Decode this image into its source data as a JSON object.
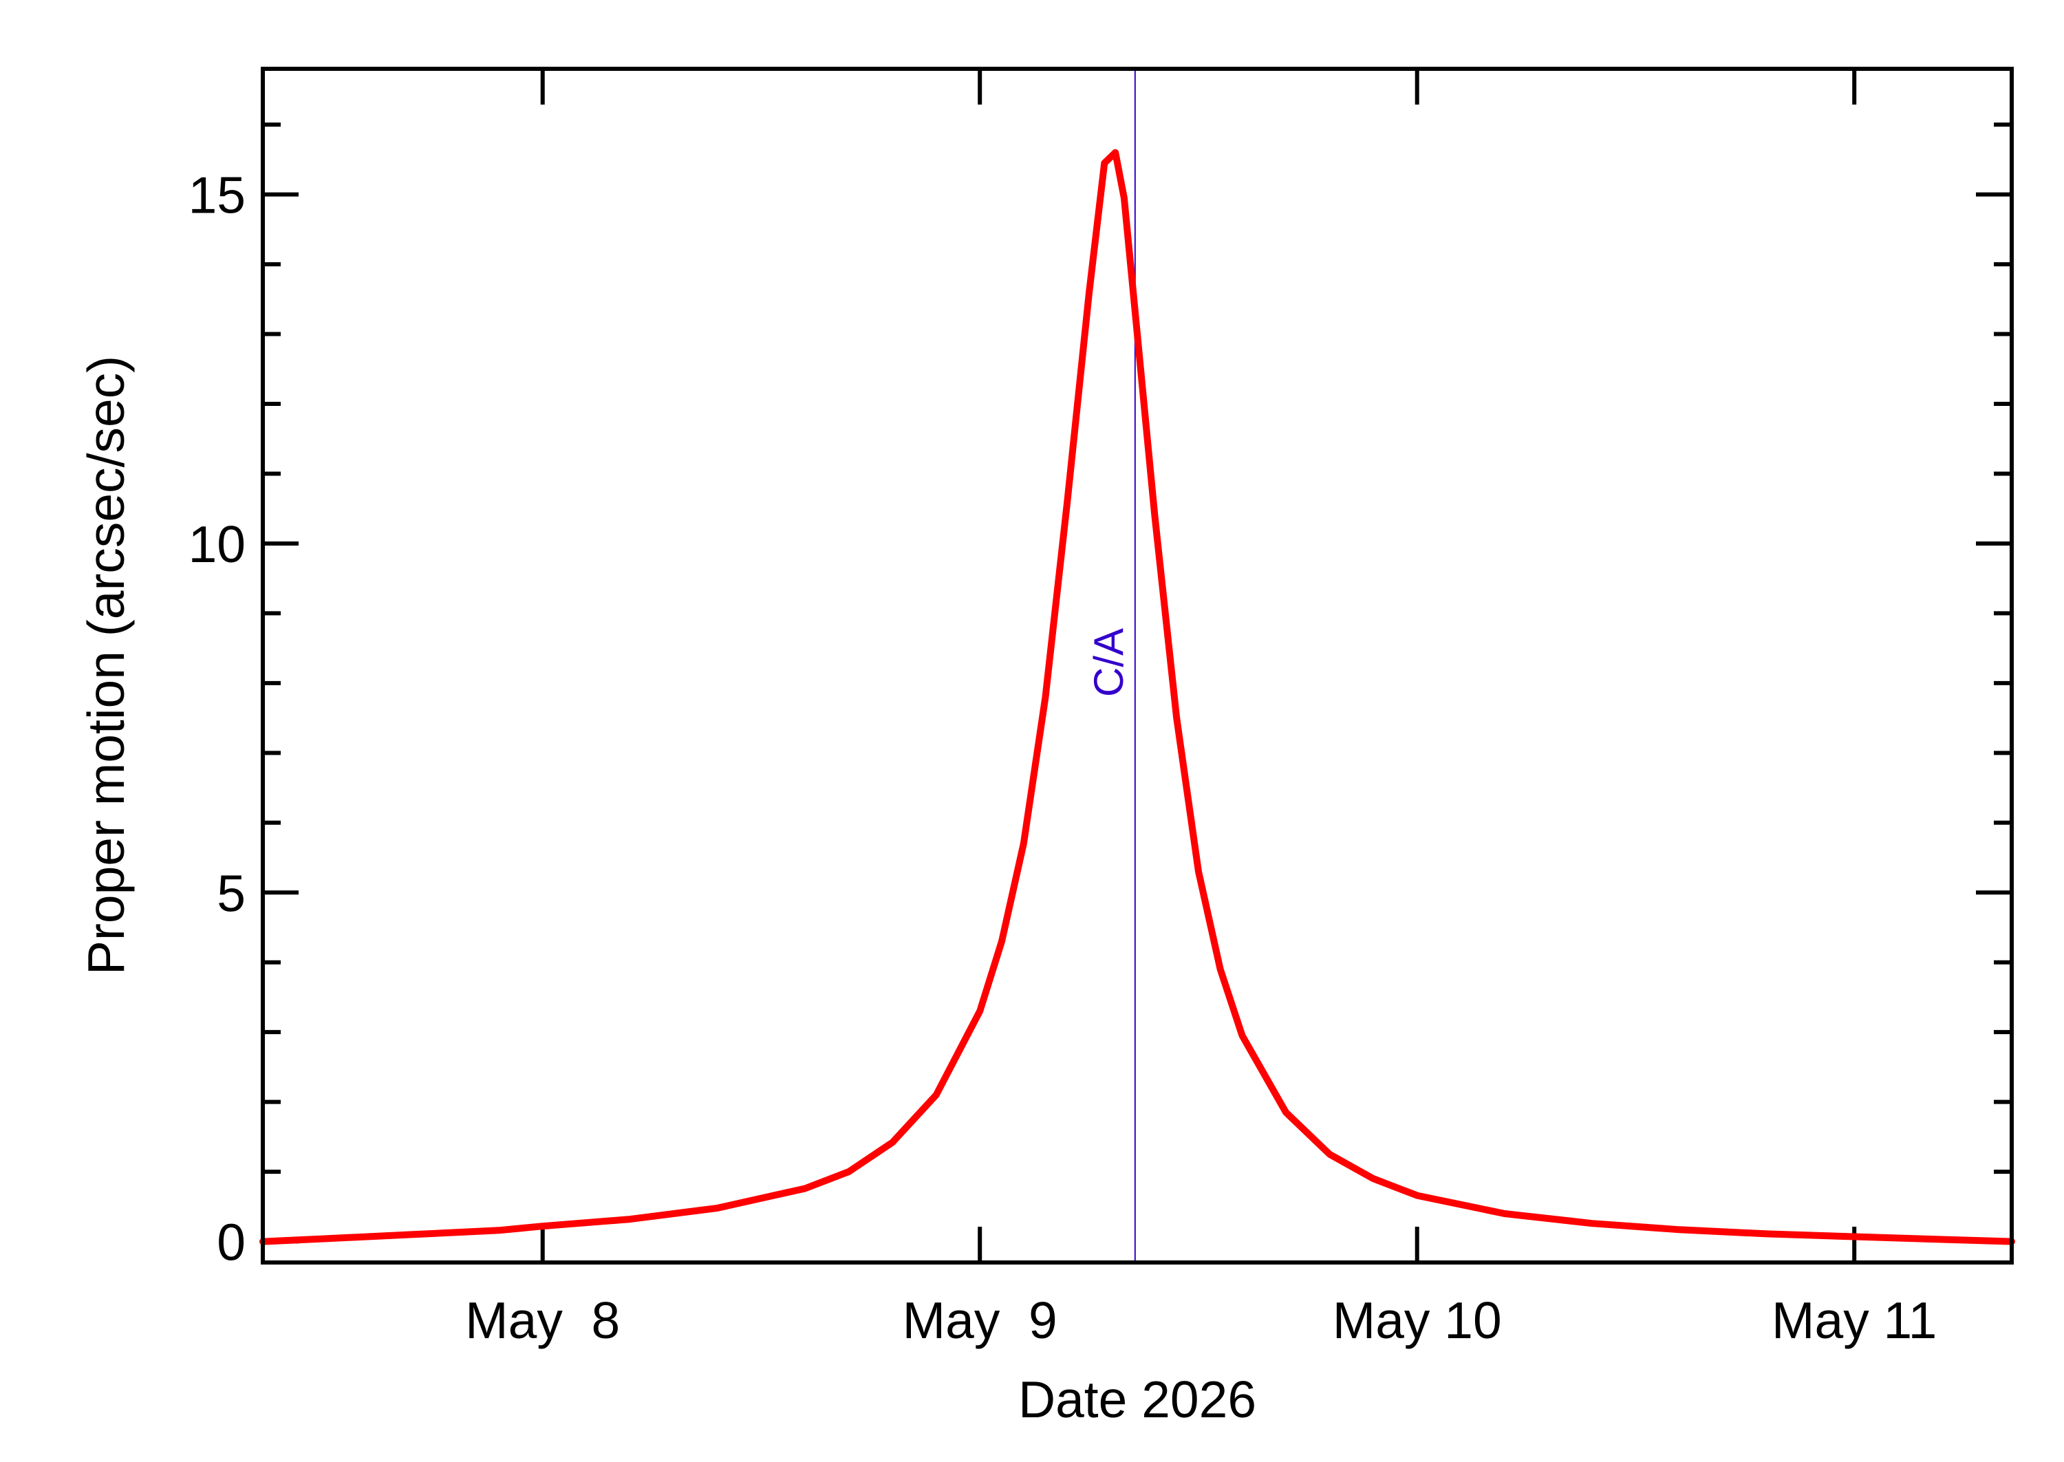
{
  "chart_data": {
    "type": "line",
    "title": "",
    "xlabel": "Date 2026",
    "ylabel": "Proper motion (arcsec/sec)",
    "x_ticks": [
      {
        "label": "May  8",
        "day": 8.0
      },
      {
        "label": "May  9",
        "day": 9.0
      },
      {
        "label": "May 10",
        "day": 10.0
      },
      {
        "label": "May 11",
        "day": 11.0
      }
    ],
    "y_ticks": [
      {
        "label": "0",
        "value": 0
      },
      {
        "label": "5",
        "value": 5
      },
      {
        "label": "10",
        "value": 10
      },
      {
        "label": "15",
        "value": 15
      }
    ],
    "xlim": [
      "May 7.36",
      "May 11.36"
    ],
    "ylim": [
      -0.3,
      16.8
    ],
    "grid": false,
    "series": [
      {
        "color": "#ff0000",
        "points": [
          [
            "May 7.36",
            0.0
          ],
          [
            "May 7.50",
            0.04
          ],
          [
            "May 7.70",
            0.1
          ],
          [
            "May 7.90",
            0.16
          ],
          [
            "May 8.00",
            0.22
          ],
          [
            "May 8.20",
            0.32
          ],
          [
            "May 8.40",
            0.48
          ],
          [
            "May 8.60",
            0.76
          ],
          [
            "May 8.70",
            1.0
          ],
          [
            "May 8.80",
            1.42
          ],
          [
            "May 8.90",
            2.1
          ],
          [
            "May 9.00",
            3.3
          ],
          [
            "May 9.05",
            4.3
          ],
          [
            "May 9.10",
            5.7
          ],
          [
            "May 9.15",
            7.8
          ],
          [
            "May 9.20",
            10.6
          ],
          [
            "May 9.25",
            13.6
          ],
          [
            "May 9.285",
            15.45
          ],
          [
            "May 9.31",
            15.6
          ],
          [
            "May 9.33",
            14.95
          ],
          [
            "May 9.36",
            13.0
          ],
          [
            "May 9.40",
            10.4
          ],
          [
            "May 9.45",
            7.5
          ],
          [
            "May 9.50",
            5.3
          ],
          [
            "May 9.55",
            3.9
          ],
          [
            "May 9.60",
            2.95
          ],
          [
            "May 9.70",
            1.85
          ],
          [
            "May 9.80",
            1.25
          ],
          [
            "May 9.90",
            0.9
          ],
          [
            "May 10.00",
            0.66
          ],
          [
            "May 10.20",
            0.4
          ],
          [
            "May 10.40",
            0.26
          ],
          [
            "May 10.60",
            0.17
          ],
          [
            "May 10.80",
            0.11
          ],
          [
            "May 11.00",
            0.07
          ],
          [
            "May 11.20",
            0.03
          ],
          [
            "May 11.36",
            0.0
          ]
        ]
      }
    ],
    "annotations": [
      {
        "text": "C/A",
        "x": "May 9.355",
        "color": "#3300cc",
        "orientation": "vertical-line"
      }
    ]
  }
}
